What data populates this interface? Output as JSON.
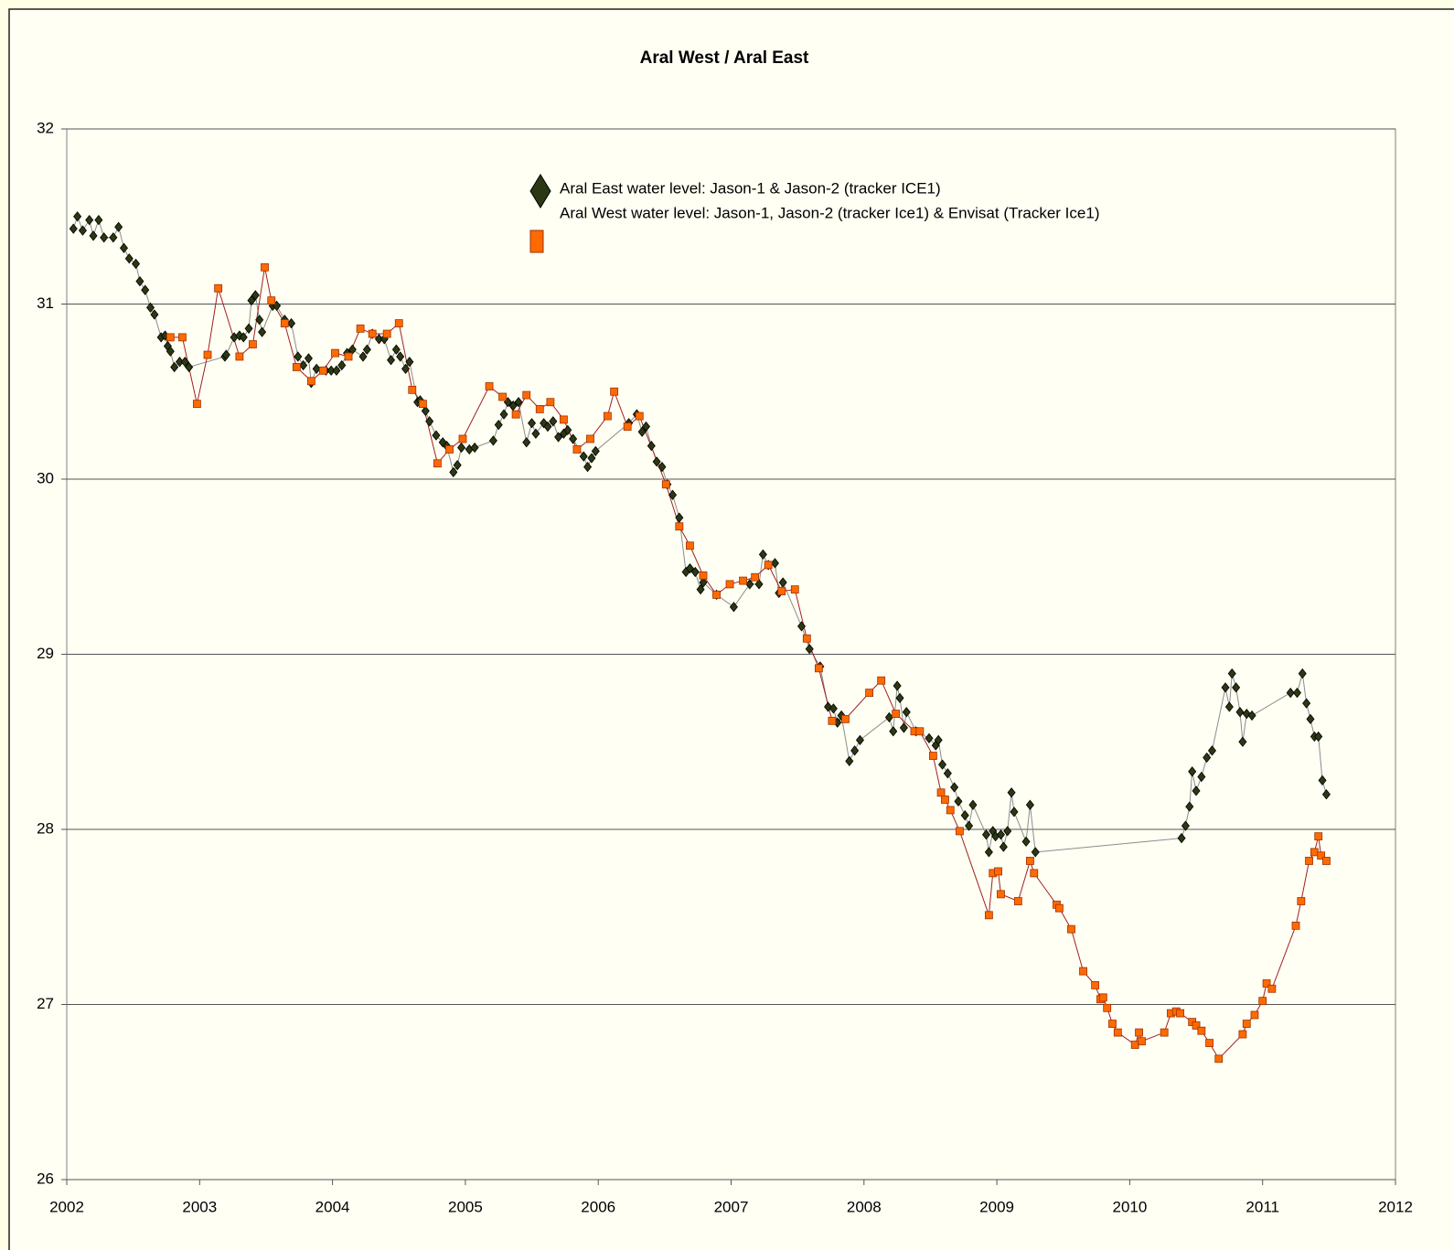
{
  "chart_data": {
    "type": "line",
    "title": "Aral West / Aral East",
    "xlim": [
      2002,
      2012
    ],
    "xticks": [
      2002,
      2003,
      2004,
      2005,
      2006,
      2007,
      2008,
      2009,
      2010,
      2011,
      2012
    ],
    "ylim": [
      26,
      32
    ],
    "yticks": [
      26,
      27,
      28,
      29,
      30,
      31,
      32
    ],
    "grid": true,
    "legend": "top",
    "series": [
      {
        "name": "Aral East water level: Jason-1 & Jason-2 (tracker ICE1)",
        "color": "#2b3812",
        "line_color": "#8c8c8c",
        "marker": "diamond",
        "x": [
          2002.05,
          2002.08,
          2002.12,
          2002.17,
          2002.2,
          2002.24,
          2002.28,
          2002.35,
          2002.39,
          2002.43,
          2002.47,
          2002.52,
          2002.55,
          2002.59,
          2002.63,
          2002.66,
          2002.71,
          2002.74,
          2002.76,
          2002.78,
          2002.81,
          2002.85,
          2002.89,
          2002.92,
          2003.19,
          2003.2,
          2003.26,
          2003.3,
          2003.33,
          2003.37,
          2003.39,
          2003.42,
          2003.45,
          2003.47,
          2003.55,
          2003.58,
          2003.64,
          2003.69,
          2003.74,
          2003.78,
          2003.82,
          2003.84,
          2003.88,
          2003.95,
          2003.99,
          2004.03,
          2004.07,
          2004.11,
          2004.15,
          2004.23,
          2004.26,
          2004.3,
          2004.35,
          2004.39,
          2004.44,
          2004.48,
          2004.51,
          2004.55,
          2004.58,
          2004.64,
          2004.66,
          2004.7,
          2004.73,
          2004.78,
          2004.83,
          2004.86,
          2004.91,
          2004.94,
          2004.97,
          2005.03,
          2005.07,
          2005.21,
          2005.25,
          2005.29,
          2005.32,
          2005.36,
          2005.4,
          2005.46,
          2005.5,
          2005.53,
          2005.59,
          2005.62,
          2005.66,
          2005.7,
          2005.74,
          2005.77,
          2005.81,
          2005.89,
          2005.92,
          2005.95,
          2005.98,
          2006.23,
          2006.29,
          2006.33,
          2006.36,
          2006.4,
          2006.44,
          2006.48,
          2006.52,
          2006.56,
          2006.61,
          2006.66,
          2006.69,
          2006.73,
          2006.77,
          2006.79,
          2006.89,
          2007.02,
          2007.14,
          2007.21,
          2007.24,
          2007.28,
          2007.33,
          2007.36,
          2007.39,
          2007.53,
          2007.59,
          2007.67,
          2007.73,
          2007.77,
          2007.8,
          2007.83,
          2007.89,
          2007.93,
          2007.97,
          2008.19,
          2008.22,
          2008.25,
          2008.27,
          2008.3,
          2008.32,
          2008.39,
          2008.49,
          2008.54,
          2008.56,
          2008.59,
          2008.63,
          2008.68,
          2008.71,
          2008.76,
          2008.79,
          2008.82,
          2008.92,
          2008.94,
          2008.97,
          2008.99,
          2009.03,
          2009.05,
          2009.08,
          2009.11,
          2009.13,
          2009.22,
          2009.25,
          2009.29,
          2010.39,
          2010.42,
          2010.45,
          2010.47,
          2010.5,
          2010.54,
          2010.58,
          2010.62,
          2010.72,
          2010.75,
          2010.77,
          2010.8,
          2010.83,
          2010.85,
          2010.88,
          2010.92,
          2011.21,
          2011.26,
          2011.3,
          2011.33,
          2011.36,
          2011.39,
          2011.42,
          2011.45,
          2011.48
        ],
        "values": [
          31.43,
          31.5,
          31.42,
          31.48,
          31.39,
          31.48,
          31.38,
          31.38,
          31.44,
          31.32,
          31.26,
          31.23,
          31.13,
          31.08,
          30.98,
          30.94,
          30.81,
          30.82,
          30.76,
          30.73,
          30.64,
          30.67,
          30.67,
          30.64,
          30.7,
          30.71,
          30.81,
          30.82,
          30.81,
          30.86,
          31.02,
          31.05,
          30.91,
          30.84,
          30.99,
          30.99,
          30.91,
          30.89,
          30.7,
          30.65,
          30.69,
          30.55,
          30.63,
          30.62,
          30.62,
          30.62,
          30.65,
          30.72,
          30.74,
          30.7,
          30.74,
          30.83,
          30.8,
          30.8,
          30.68,
          30.74,
          30.7,
          30.63,
          30.67,
          30.44,
          30.45,
          30.39,
          30.33,
          30.25,
          30.21,
          30.19,
          30.04,
          30.08,
          30.18,
          30.17,
          30.18,
          30.22,
          30.31,
          30.37,
          30.44,
          30.42,
          30.44,
          30.21,
          30.32,
          30.26,
          30.32,
          30.3,
          30.33,
          30.24,
          30.26,
          30.28,
          30.23,
          30.13,
          30.07,
          30.12,
          30.16,
          30.32,
          30.37,
          30.27,
          30.3,
          30.19,
          30.1,
          30.07,
          29.97,
          29.91,
          29.78,
          29.47,
          29.49,
          29.47,
          29.37,
          29.41,
          29.34,
          29.27,
          29.4,
          29.4,
          29.57,
          29.51,
          29.52,
          29.35,
          29.41,
          29.16,
          29.03,
          28.93,
          28.7,
          28.69,
          28.61,
          28.65,
          28.39,
          28.45,
          28.51,
          28.64,
          28.56,
          28.82,
          28.75,
          28.58,
          28.67,
          28.56,
          28.52,
          28.48,
          28.51,
          28.37,
          28.32,
          28.24,
          28.16,
          28.08,
          28.02,
          28.14,
          27.97,
          27.87,
          27.99,
          27.96,
          27.97,
          27.9,
          27.99,
          28.21,
          28.1,
          27.93,
          28.14,
          27.87,
          27.95,
          28.02,
          28.13,
          28.33,
          28.22,
          28.3,
          28.41,
          28.45,
          28.81,
          28.7,
          28.89,
          28.81,
          28.67,
          28.5,
          28.66,
          28.65,
          28.78,
          28.78,
          28.89,
          28.72,
          28.63,
          28.53,
          28.53,
          28.28,
          28.2
        ]
      },
      {
        "name": "Aral West water level: Jason-1, Jason-2 (tracker Ice1) & Envisat (Tracker Ice1)",
        "color": "#ff6a00",
        "line_color": "#a02020",
        "marker": "square",
        "x": [
          2002.78,
          2002.87,
          2002.98,
          2003.06,
          2003.14,
          2003.3,
          2003.4,
          2003.49,
          2003.54,
          2003.64,
          2003.73,
          2003.84,
          2003.93,
          2004.02,
          2004.12,
          2004.21,
          2004.3,
          2004.41,
          2004.5,
          2004.6,
          2004.68,
          2004.79,
          2004.88,
          2004.98,
          2005.18,
          2005.28,
          2005.38,
          2005.46,
          2005.56,
          2005.64,
          2005.74,
          2005.84,
          2005.94,
          2006.07,
          2006.12,
          2006.22,
          2006.31,
          2006.51,
          2006.61,
          2006.69,
          2006.79,
          2006.89,
          2006.99,
          2007.09,
          2007.18,
          2007.28,
          2007.38,
          2007.48,
          2007.57,
          2007.66,
          2007.76,
          2007.86,
          2008.04,
          2008.13,
          2008.24,
          2008.38,
          2008.42,
          2008.52,
          2008.58,
          2008.61,
          2008.65,
          2008.72,
          2008.94,
          2008.97,
          2009.01,
          2009.03,
          2009.16,
          2009.25,
          2009.28,
          2009.45,
          2009.47,
          2009.56,
          2009.65,
          2009.74,
          2009.78,
          2009.8,
          2009.83,
          2009.87,
          2009.91,
          2010.04,
          2010.07,
          2010.09,
          2010.26,
          2010.31,
          2010.35,
          2010.38,
          2010.47,
          2010.5,
          2010.54,
          2010.6,
          2010.67,
          2010.85,
          2010.88,
          2010.94,
          2011.0,
          2011.03,
          2011.07,
          2011.25,
          2011.29,
          2011.35,
          2011.39,
          2011.42,
          2011.44,
          2011.48
        ],
        "values": [
          30.81,
          30.81,
          30.43,
          30.71,
          31.09,
          30.7,
          30.77,
          31.21,
          31.02,
          30.89,
          30.64,
          30.56,
          30.62,
          30.72,
          30.7,
          30.86,
          30.83,
          30.83,
          30.89,
          30.51,
          30.43,
          30.09,
          30.17,
          30.23,
          30.53,
          30.47,
          30.37,
          30.48,
          30.4,
          30.44,
          30.34,
          30.17,
          30.23,
          30.36,
          30.5,
          30.3,
          30.36,
          29.97,
          29.73,
          29.62,
          29.45,
          29.34,
          29.4,
          29.42,
          29.44,
          29.51,
          29.36,
          29.37,
          29.09,
          28.92,
          28.62,
          28.63,
          28.78,
          28.85,
          28.66,
          28.56,
          28.56,
          28.42,
          28.21,
          28.17,
          28.11,
          27.99,
          27.51,
          27.75,
          27.76,
          27.63,
          27.59,
          27.82,
          27.75,
          27.57,
          27.55,
          27.43,
          27.19,
          27.11,
          27.03,
          27.04,
          26.98,
          26.89,
          26.84,
          26.77,
          26.84,
          26.79,
          26.84,
          26.95,
          26.96,
          26.95,
          26.9,
          26.88,
          26.85,
          26.78,
          26.69,
          26.83,
          26.89,
          26.94,
          27.02,
          27.12,
          27.09,
          27.45,
          27.59,
          27.82,
          27.87,
          27.96,
          27.85,
          27.82
        ]
      }
    ]
  }
}
